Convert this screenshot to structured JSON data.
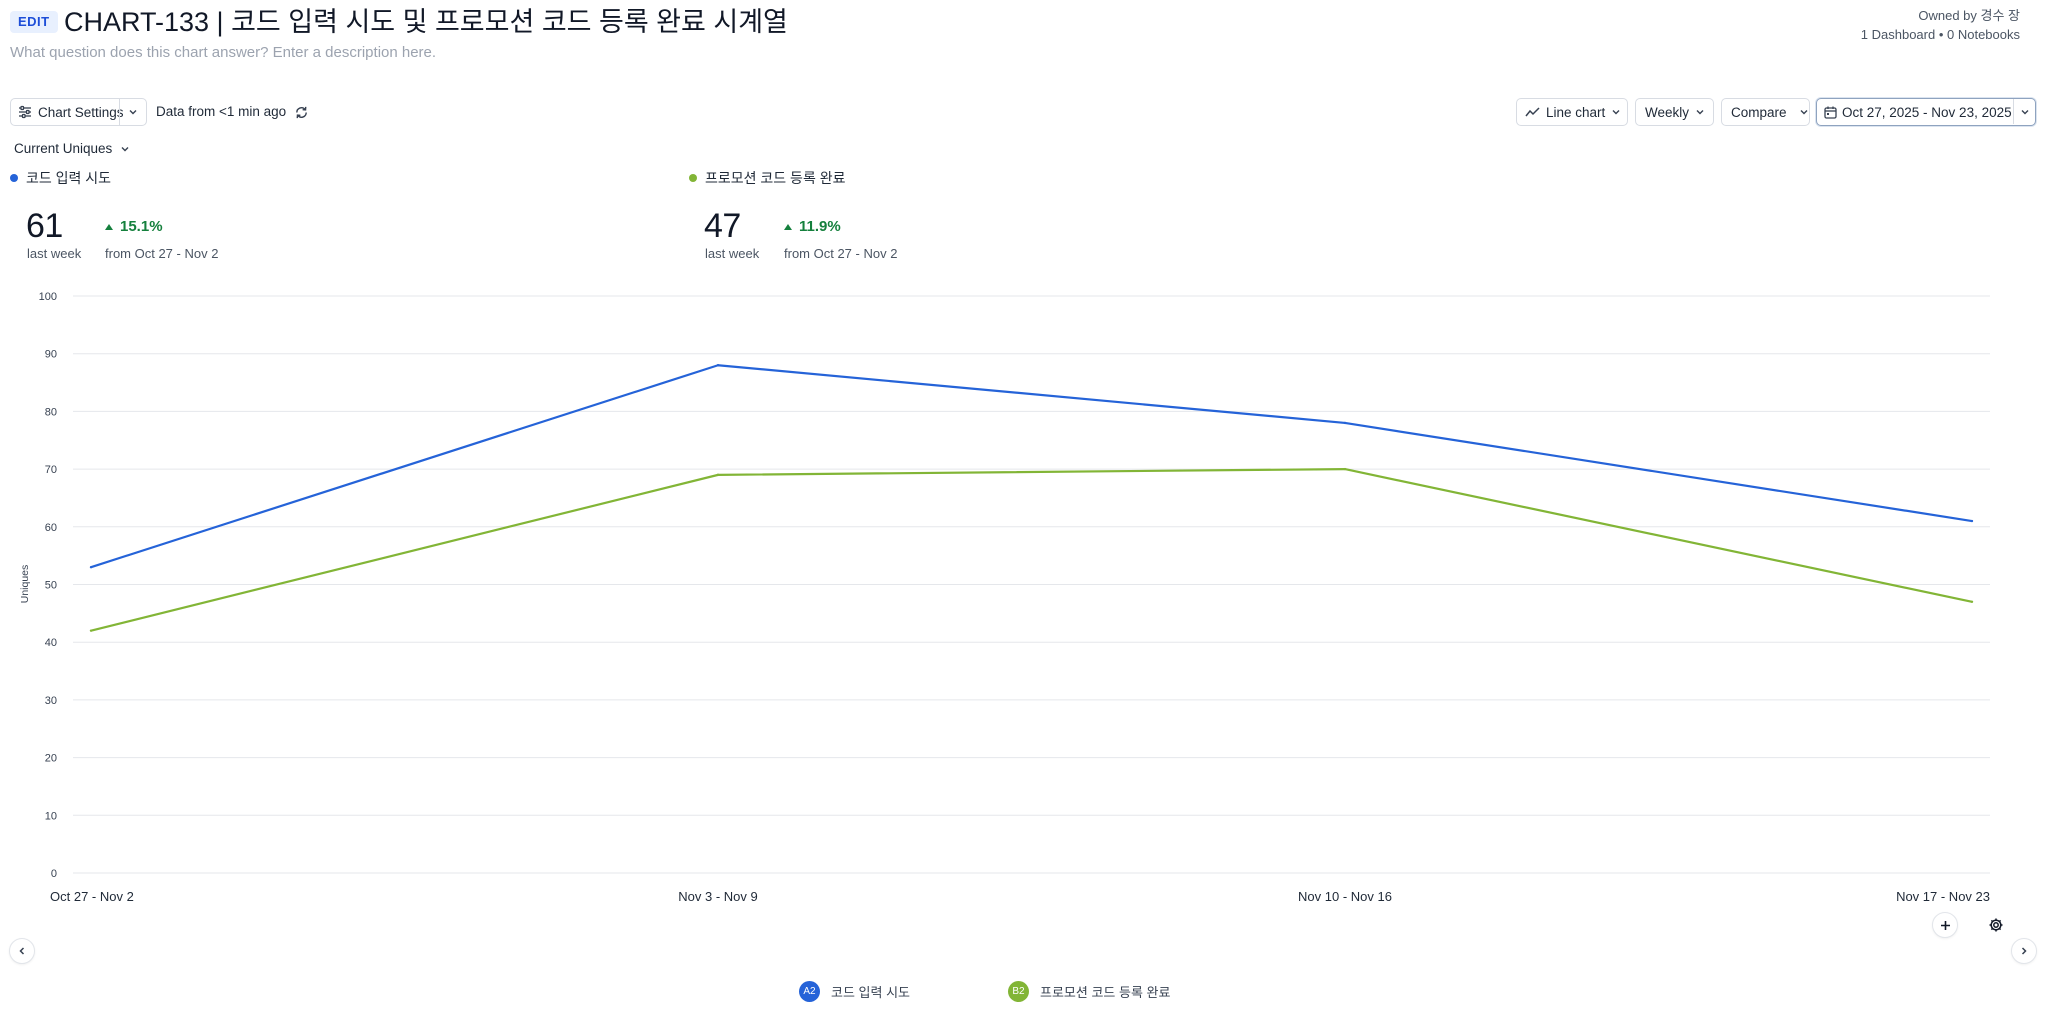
{
  "header": {
    "edit_label": "EDIT",
    "title": "CHART-133 | 코드 입력 시도 및 프로모션 코드 등록 완료 시계열",
    "description_placeholder": "What question does this chart answer? Enter a description here.",
    "owner": "Owned by 경수 장",
    "usage": "1 Dashboard • 0 Notebooks"
  },
  "toolbar": {
    "chart_settings_label": "Chart Settings",
    "data_age": "Data from <1 min ago",
    "chart_type_label": "Line chart",
    "interval_label": "Weekly",
    "compare_label": "Compare",
    "date_range_label": "Oct 27, 2025 - Nov 23, 2025"
  },
  "metric_selector": {
    "label": "Current Uniques"
  },
  "summaries": [
    {
      "name": "코드 입력 시도",
      "value": "61",
      "period": "last week",
      "delta": "15.1%",
      "delta_from": "from Oct 27 - Nov 2",
      "color": "#2563d8"
    },
    {
      "name": "프로모션 코드 등록 완료",
      "value": "47",
      "period": "last week",
      "delta": "11.9%",
      "delta_from": "from Oct 27 - Nov 2",
      "color": "#82b536"
    }
  ],
  "chart_data": {
    "type": "line",
    "categories": [
      "Oct 27 - Nov 2",
      "Nov 3 - Nov 9",
      "Nov 10 - Nov 16",
      "Nov 17 - Nov 23"
    ],
    "series": [
      {
        "name": "코드 입력 시도",
        "values": [
          53,
          88,
          78,
          61
        ],
        "color": "#2563d8"
      },
      {
        "name": "프로모션 코드 등록 완료",
        "values": [
          42,
          69,
          70,
          47
        ],
        "color": "#82b536"
      }
    ],
    "ylabel": "Uniques",
    "xlabel": "",
    "ylim": [
      0,
      100
    ],
    "yticks": [
      "0",
      "10",
      "20",
      "30",
      "40",
      "50",
      "60",
      "70",
      "80",
      "90",
      "100"
    ],
    "grid": true,
    "legend_placement": "bottom"
  },
  "legend": [
    {
      "badge": "A2",
      "label": "코드 입력 시도",
      "color": "#2563d8"
    },
    {
      "badge": "B2",
      "label": "프로모션 코드 등록 완료",
      "color": "#82b536"
    }
  ],
  "icons": {
    "chart_settings": "sliders-icon",
    "refresh": "refresh-icon",
    "line_chart": "line-chart-icon",
    "calendar": "calendar-icon",
    "plus": "plus-icon",
    "gear": "gear-icon"
  }
}
